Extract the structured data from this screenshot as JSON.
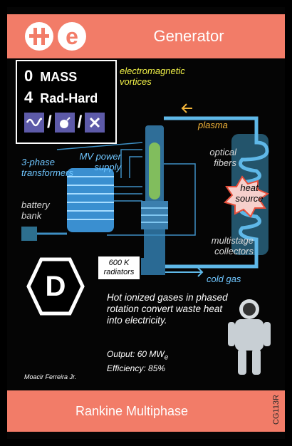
{
  "header": {
    "title": "Generator",
    "logo_letters": [
      "II",
      "e"
    ]
  },
  "stats": {
    "mass_value": "0",
    "mass_label": "MASS",
    "radhard_value": "4",
    "radhard_label": "Rad-Hard",
    "type_icons": [
      "wave-icon",
      "bomb-icon",
      "x-icon"
    ],
    "colors": {
      "icon_bg": "#5d5aa8",
      "header_bg": "#f27c68"
    }
  },
  "diagram": {
    "vortices_label": "electromagnetic vortices",
    "plasma_label": "plasma",
    "optical_label": "optical fibers",
    "heat_label": "heat source",
    "transformers_label": "3-phase transformers",
    "mv_label": "MV power supply",
    "battery_label": "battery bank",
    "collectors_label": "multistage collectors",
    "radiators_label": "600 K radiators",
    "coldgas_label": "cold gas"
  },
  "badge": {
    "letter": "D"
  },
  "description": "Hot ionized gases in phased rotation convert waste heat into electricity.",
  "output_text": "Output: 60 MW",
  "output_sub": "e",
  "efficiency_text": "Efficiency: 85%",
  "artist": "Moacir Ferreira Jr.",
  "footer": {
    "title": "Rankine Multiphase",
    "code": "CG113R"
  }
}
